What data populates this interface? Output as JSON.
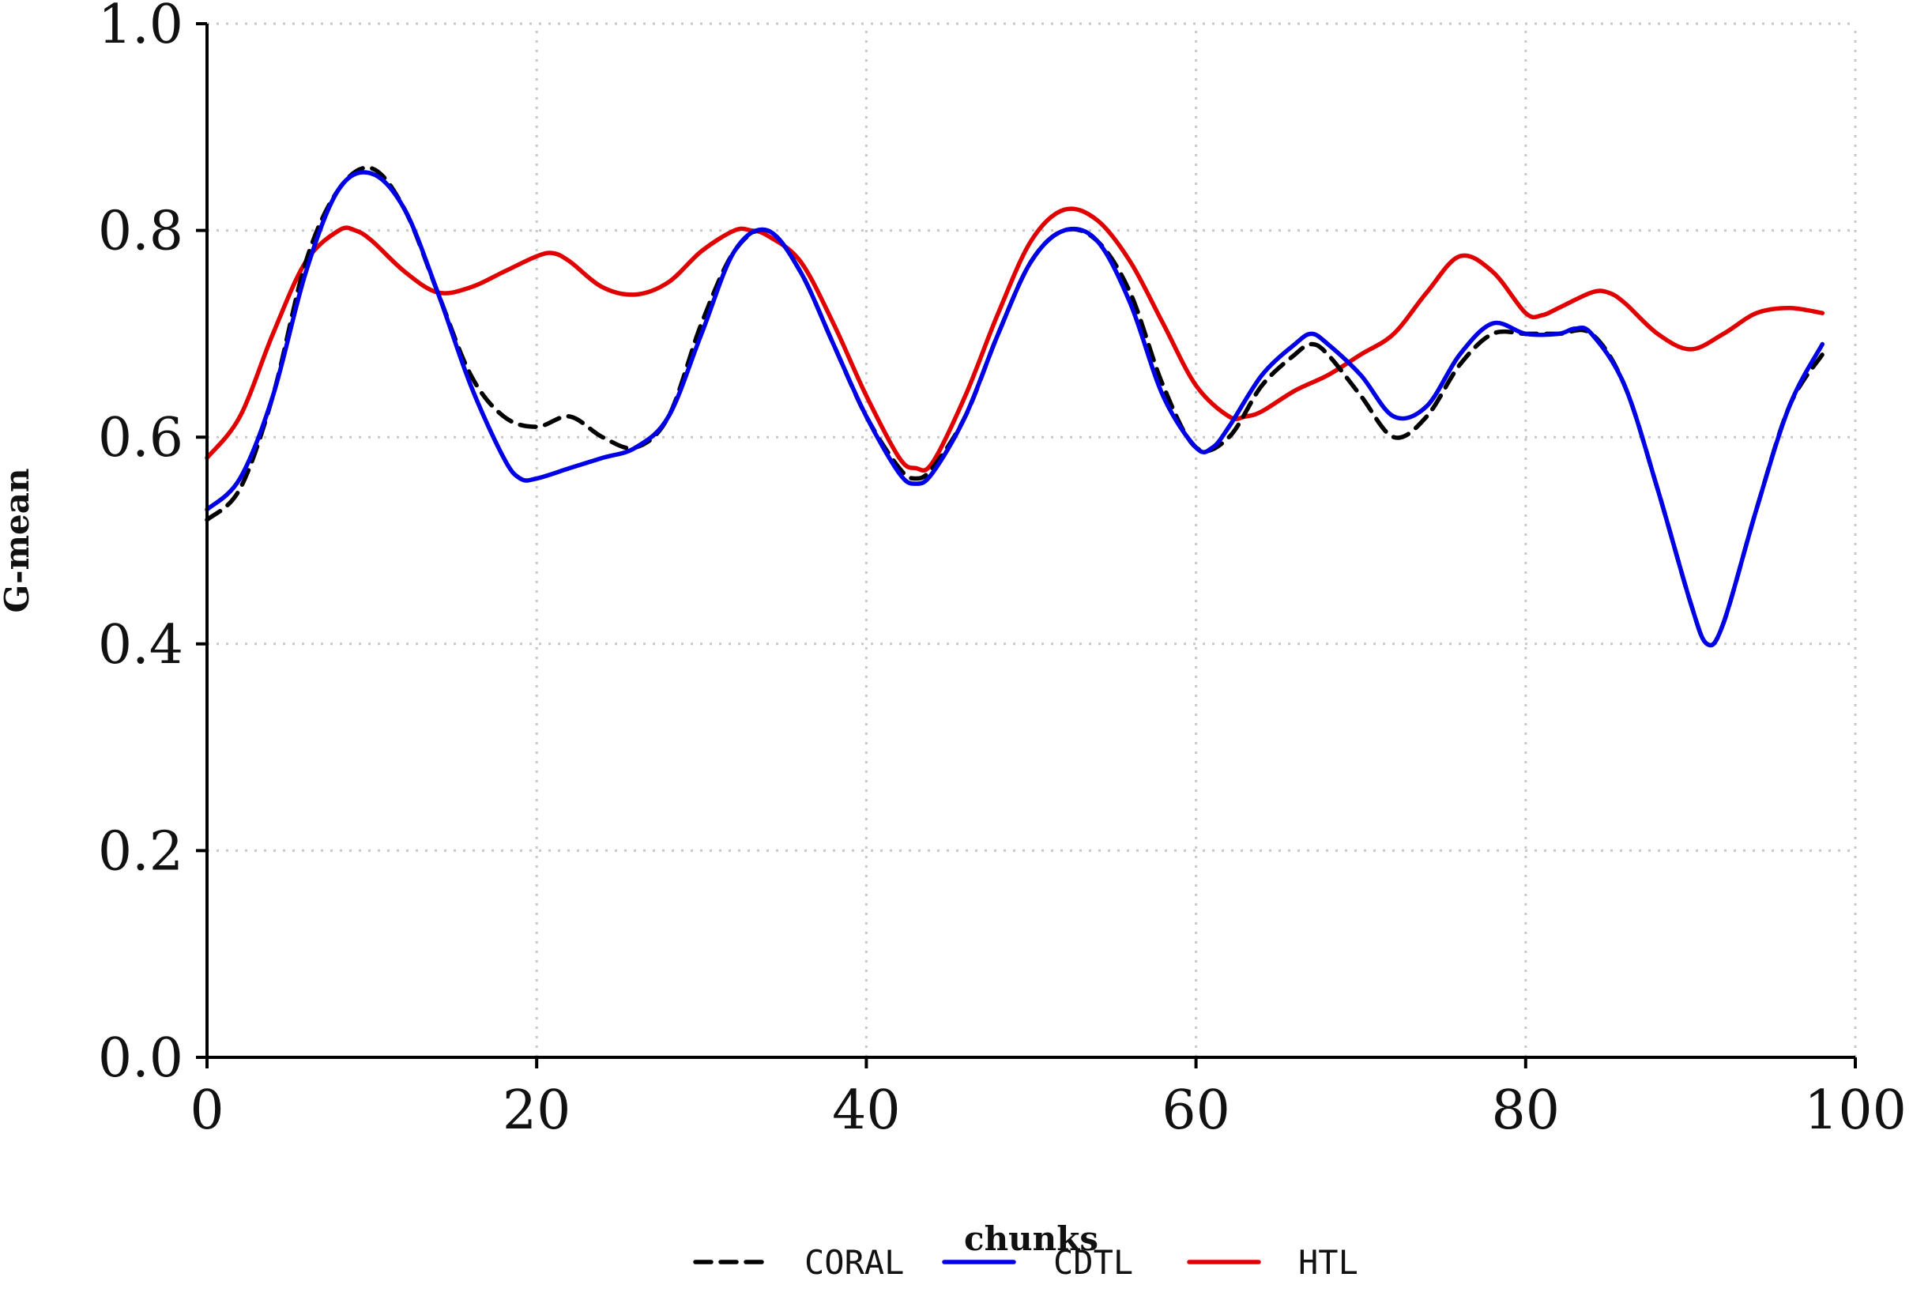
{
  "chart_data": {
    "type": "line",
    "xlabel": "chunks",
    "ylabel": "G-mean",
    "xlim": [
      0,
      100
    ],
    "ylim": [
      0.0,
      1.0
    ],
    "xticks": [
      "0",
      "20",
      "40",
      "60",
      "80",
      "100"
    ],
    "yticks": [
      "0.0",
      "0.2",
      "0.4",
      "0.6",
      "0.8",
      "1.0"
    ],
    "grid": true,
    "legend": "bottom",
    "series": [
      {
        "name": "CORAL",
        "color": "#000000",
        "dash": "dashed",
        "x": [
          0,
          2,
          4,
          6,
          8,
          10,
          12,
          14,
          16,
          18,
          20,
          22,
          24,
          26,
          28,
          30,
          32,
          34,
          36,
          38,
          40,
          42,
          43,
          44,
          46,
          48,
          50,
          52,
          54,
          56,
          58,
          60,
          62,
          64,
          66,
          67,
          68,
          70,
          72,
          74,
          76,
          78,
          80,
          82,
          84,
          86,
          88,
          90,
          91,
          92,
          94,
          96,
          98
        ],
        "y": [
          0.52,
          0.55,
          0.64,
          0.77,
          0.84,
          0.86,
          0.82,
          0.74,
          0.66,
          0.62,
          0.61,
          0.62,
          0.6,
          0.59,
          0.62,
          0.71,
          0.78,
          0.8,
          0.76,
          0.69,
          0.62,
          0.57,
          0.56,
          0.57,
          0.62,
          0.7,
          0.77,
          0.8,
          0.79,
          0.74,
          0.65,
          0.59,
          0.6,
          0.65,
          0.68,
          0.69,
          0.68,
          0.64,
          0.6,
          0.62,
          0.67,
          0.7,
          0.7,
          0.7,
          0.7,
          0.65,
          0.55,
          0.44,
          0.4,
          0.42,
          0.53,
          0.63,
          0.68
        ]
      },
      {
        "name": "CDTL",
        "color": "#0000e6",
        "dash": "solid",
        "x": [
          0,
          2,
          4,
          6,
          8,
          10,
          12,
          14,
          16,
          18,
          19,
          20,
          22,
          24,
          26,
          28,
          30,
          32,
          34,
          36,
          38,
          40,
          42,
          43,
          44,
          46,
          48,
          50,
          52,
          54,
          56,
          58,
          60,
          61,
          62,
          64,
          66,
          67,
          68,
          70,
          72,
          74,
          76,
          78,
          80,
          82,
          83,
          84,
          86,
          88,
          90,
          91,
          92,
          94,
          96,
          98
        ],
        "y": [
          0.53,
          0.56,
          0.64,
          0.76,
          0.84,
          0.855,
          0.82,
          0.74,
          0.65,
          0.58,
          0.56,
          0.56,
          0.57,
          0.58,
          0.59,
          0.62,
          0.7,
          0.78,
          0.8,
          0.76,
          0.69,
          0.62,
          0.565,
          0.555,
          0.565,
          0.62,
          0.7,
          0.77,
          0.8,
          0.79,
          0.73,
          0.64,
          0.59,
          0.59,
          0.61,
          0.66,
          0.69,
          0.7,
          0.69,
          0.66,
          0.62,
          0.63,
          0.68,
          0.71,
          0.7,
          0.7,
          0.705,
          0.7,
          0.65,
          0.55,
          0.44,
          0.4,
          0.42,
          0.53,
          0.63,
          0.69
        ]
      },
      {
        "name": "HTL",
        "color": "#e00000",
        "dash": "solid",
        "x": [
          0,
          2,
          4,
          6,
          8,
          9,
          10,
          12,
          14,
          16,
          18,
          20,
          21,
          22,
          24,
          26,
          28,
          30,
          32,
          33,
          34,
          36,
          38,
          40,
          42,
          43,
          44,
          46,
          48,
          50,
          52,
          54,
          56,
          58,
          60,
          62,
          63,
          64,
          66,
          68,
          70,
          72,
          74,
          76,
          78,
          80,
          81,
          82,
          84,
          85,
          86,
          88,
          90,
          92,
          94,
          96,
          98
        ],
        "y": [
          0.58,
          0.62,
          0.7,
          0.77,
          0.8,
          0.8,
          0.79,
          0.76,
          0.74,
          0.745,
          0.76,
          0.775,
          0.778,
          0.77,
          0.745,
          0.738,
          0.75,
          0.78,
          0.8,
          0.8,
          0.795,
          0.77,
          0.71,
          0.64,
          0.58,
          0.57,
          0.575,
          0.64,
          0.72,
          0.79,
          0.82,
          0.81,
          0.77,
          0.71,
          0.65,
          0.62,
          0.62,
          0.625,
          0.645,
          0.66,
          0.68,
          0.7,
          0.74,
          0.775,
          0.76,
          0.72,
          0.718,
          0.725,
          0.74,
          0.74,
          0.73,
          0.7,
          0.685,
          0.7,
          0.72,
          0.725,
          0.72
        ]
      }
    ]
  }
}
